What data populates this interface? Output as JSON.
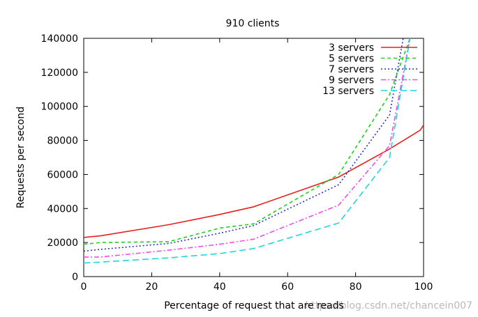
{
  "chart_data": {
    "type": "line",
    "title": "910 clients",
    "xlabel": "Percentage of request that are reads",
    "ylabel": "Requests per second",
    "xlim": [
      0,
      100
    ],
    "ylim": [
      0,
      140000
    ],
    "xticks": [
      0,
      20,
      40,
      60,
      80,
      100
    ],
    "yticks": [
      0,
      20000,
      40000,
      60000,
      80000,
      100000,
      120000,
      140000
    ],
    "legend_position": "top-right",
    "grid": false,
    "series": [
      {
        "name": "3 servers",
        "color": "#e8201c",
        "dash": "solid",
        "x": [
          0,
          5,
          25,
          40,
          50,
          75,
          90,
          99,
          100
        ],
        "y": [
          23000,
          24000,
          30500,
          36500,
          41000,
          58500,
          75000,
          86000,
          89000
        ]
      },
      {
        "name": "5 servers",
        "color": "#1bd21b",
        "dash": "dash",
        "x": [
          0,
          5,
          25,
          40,
          50,
          75,
          90,
          96
        ],
        "y": [
          19000,
          20000,
          20500,
          28500,
          31000,
          60000,
          107000,
          140000
        ]
      },
      {
        "name": "7 servers",
        "color": "#2430d0",
        "dash": "dot",
        "x": [
          0,
          5,
          25,
          40,
          50,
          75,
          90,
          94
        ],
        "y": [
          15000,
          16000,
          19500,
          25500,
          30000,
          54000,
          95000,
          140000
        ]
      },
      {
        "name": "9 servers",
        "color": "#f04ce8",
        "dash": "dashdot",
        "x": [
          0,
          5,
          25,
          40,
          50,
          75,
          90,
          96
        ],
        "y": [
          11500,
          11500,
          15500,
          19000,
          22000,
          42000,
          77000,
          140000
        ]
      },
      {
        "name": "13 servers",
        "color": "#1ed6da",
        "dash": "longdash",
        "x": [
          0,
          5,
          25,
          40,
          50,
          75,
          90,
          96
        ],
        "y": [
          8000,
          8500,
          11000,
          13500,
          16500,
          31500,
          70000,
          140000
        ]
      }
    ],
    "watermark": "https://blog.csdn.net/chancein007"
  }
}
